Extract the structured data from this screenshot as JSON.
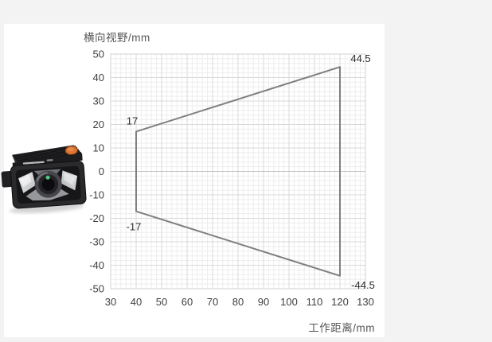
{
  "theme": {
    "page_bg": "#f3f3f4",
    "card_bg": "#ffffff",
    "grid_minor": "#ededee",
    "grid_major": "#d9d9da",
    "zero_line": "#c3c3c5",
    "plot_border": "#d2d2d4",
    "series_line": "#7f7f82",
    "tick_color": "#3f3f41",
    "title_color": "#565658",
    "annotation_color": "#2e2e30",
    "device_button": "#dd7430",
    "device_glint": "#4fc57c"
  },
  "chart_data": {
    "type": "line",
    "title": "",
    "xlabel": "工作距离/mm",
    "ylabel": "横向视野/mm",
    "xlim": [
      30,
      130
    ],
    "ylim": [
      -50,
      50
    ],
    "x_ticks": [
      30,
      40,
      50,
      60,
      70,
      80,
      90,
      100,
      110,
      120,
      130
    ],
    "y_ticks": [
      50,
      40,
      30,
      20,
      10,
      0,
      -10,
      -20,
      -30,
      -40,
      -50
    ],
    "minor_grid_step": 2,
    "major_grid_step": 10,
    "grid": "on",
    "legend": "none",
    "series": [
      {
        "name": "field-of-view-envelope",
        "closed": true,
        "points": [
          [
            40,
            17
          ],
          [
            120,
            44.5
          ],
          [
            120,
            -44.5
          ],
          [
            40,
            -17
          ]
        ]
      }
    ],
    "annotations": [
      {
        "text": "17",
        "x": 40,
        "y": 17,
        "placement": "above"
      },
      {
        "text": "-17",
        "x": 40,
        "y": -17,
        "placement": "below"
      },
      {
        "text": "44.5",
        "x": 120,
        "y": 44.5,
        "placement": "top-right"
      },
      {
        "text": "-44.5",
        "x": 120,
        "y": -44.5,
        "placement": "bottom-right"
      }
    ]
  },
  "device": {
    "alt": "industrial-code-reader-camera"
  }
}
